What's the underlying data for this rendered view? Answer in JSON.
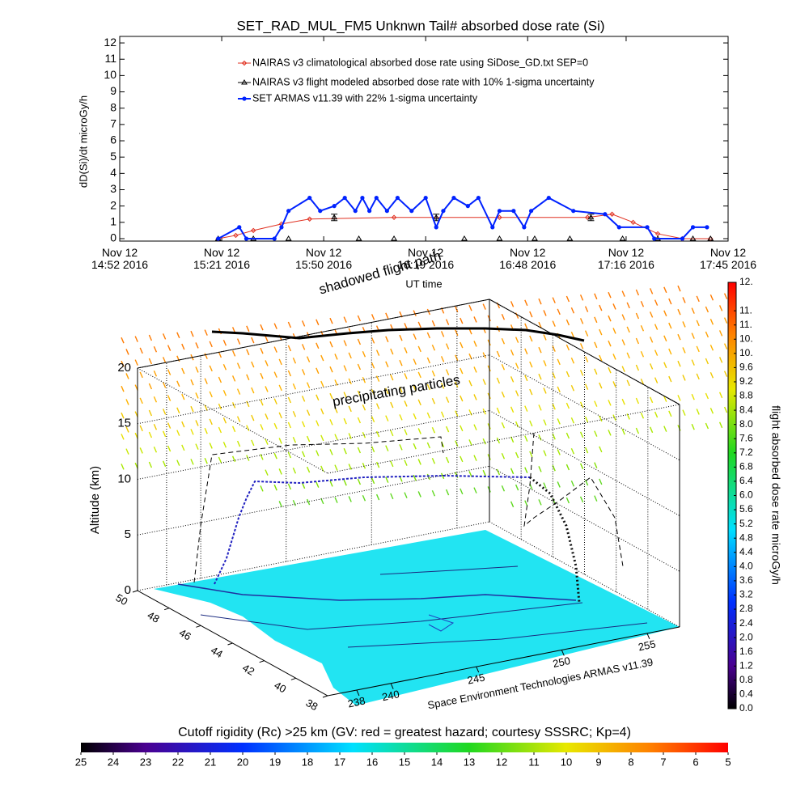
{
  "chart_data": [
    {
      "type": "line",
      "title": "SET_RAD_MUL_FM5 Unknwn Tail#  absorbed dose rate (Si)",
      "y_label": "dD(Si)/dt microGy/h",
      "x_label": "UT time",
      "xlim": [
        "2016-11-12T14:52",
        "2016-11-12T17:45"
      ],
      "xticks": [
        {
          "value": "2016-11-12T14:52",
          "label": "Nov 12\n14:52 2016"
        },
        {
          "value": "2016-11-12T15:21",
          "label": "Nov 12\n15:21 2016"
        },
        {
          "value": "2016-11-12T15:50",
          "label": "Nov 12\n15:50 2016"
        },
        {
          "value": "2016-11-12T16:19",
          "label": "Nov 12\n16:19 2016"
        },
        {
          "value": "2016-11-12T16:48",
          "label": "Nov 12\n16:48 2016"
        },
        {
          "value": "2016-11-12T17:16",
          "label": "Nov 12\n17:16 2016"
        },
        {
          "value": "2016-11-12T17:45",
          "label": "Nov 12\n17:45 2016"
        }
      ],
      "ylim": [
        -0.15,
        12.4
      ],
      "yticks": [
        0,
        1,
        2,
        3,
        4,
        5,
        6,
        7,
        8,
        9,
        10,
        11,
        12
      ],
      "series": [
        {
          "name": "NAIRAS v3 climatological absorbed dose rate using SiDose_GD.txt SEP=0",
          "color": "#e03020",
          "marker": "diamond",
          "line": true,
          "x": [
            "2016-11-12T15:20",
            "2016-11-12T15:25",
            "2016-11-12T15:30",
            "2016-11-12T15:38",
            "2016-11-12T15:46",
            "2016-11-12T16:10",
            "2016-11-12T16:40",
            "2016-11-12T17:05",
            "2016-11-12T17:12",
            "2016-11-12T17:18",
            "2016-11-12T17:25",
            "2016-11-12T17:32",
            "2016-11-12T17:40"
          ],
          "values": [
            0,
            0.2,
            0.5,
            0.9,
            1.2,
            1.3,
            1.3,
            1.3,
            1.5,
            1.0,
            0.3,
            0,
            0
          ]
        },
        {
          "name": "NAIRAS v3 flight modeled absorbed dose rate with 10% 1-sigma uncertainty",
          "color": "#000000",
          "marker": "triangle",
          "line": false,
          "x": [
            "2016-11-12T15:20",
            "2016-11-12T15:30",
            "2016-11-12T15:40",
            "2016-11-12T15:53",
            "2016-11-12T16:00",
            "2016-11-12T16:10",
            "2016-11-12T16:22",
            "2016-11-12T16:30",
            "2016-11-12T16:40",
            "2016-11-12T16:50",
            "2016-11-12T17:00",
            "2016-11-12T17:06",
            "2016-11-12T17:15",
            "2016-11-12T17:25",
            "2016-11-12T17:35",
            "2016-11-12T17:40"
          ],
          "values": [
            0,
            0,
            0,
            1.3,
            0,
            0,
            1.3,
            0,
            0,
            0,
            0,
            1.3,
            0,
            0,
            0,
            0
          ],
          "errors": [
            null,
            null,
            null,
            0.2,
            null,
            null,
            0.2,
            null,
            null,
            null,
            null,
            0.2,
            null,
            null,
            null,
            null
          ]
        },
        {
          "name": "SET ARMAS v11.39 with 22% 1-sigma uncertainty",
          "color": "#0022ff",
          "marker": "circle",
          "line": true,
          "x": [
            "2016-11-12T15:20",
            "2016-11-12T15:26",
            "2016-11-12T15:28",
            "2016-11-12T15:36",
            "2016-11-12T15:38",
            "2016-11-12T15:40",
            "2016-11-12T15:46",
            "2016-11-12T15:49",
            "2016-11-12T15:53",
            "2016-11-12T15:56",
            "2016-11-12T15:59",
            "2016-11-12T16:01",
            "2016-11-12T16:03",
            "2016-11-12T16:05",
            "2016-11-12T16:08",
            "2016-11-12T16:11",
            "2016-11-12T16:15",
            "2016-11-12T16:19",
            "2016-11-12T16:22",
            "2016-11-12T16:24",
            "2016-11-12T16:27",
            "2016-11-12T16:31",
            "2016-11-12T16:34",
            "2016-11-12T16:38",
            "2016-11-12T16:40",
            "2016-11-12T16:44",
            "2016-11-12T16:47",
            "2016-11-12T16:49",
            "2016-11-12T16:54",
            "2016-11-12T17:01",
            "2016-11-12T17:10",
            "2016-11-12T17:14",
            "2016-11-12T17:22",
            "2016-11-12T17:24",
            "2016-11-12T17:32",
            "2016-11-12T17:35",
            "2016-11-12T17:39"
          ],
          "values": [
            0,
            0.7,
            0,
            0,
            0.7,
            1.7,
            2.5,
            1.7,
            2.0,
            2.5,
            1.7,
            2.5,
            1.7,
            2.5,
            1.7,
            2.5,
            1.7,
            2.5,
            0.7,
            1.7,
            2.5,
            2.0,
            2.5,
            0.7,
            1.7,
            1.7,
            0.7,
            1.7,
            2.5,
            1.7,
            1.5,
            0.7,
            0.7,
            0,
            0,
            0.7,
            0.7
          ]
        }
      ]
    },
    {
      "type": "surface3d",
      "y_label": "Altitude (km)",
      "zlim": [
        0,
        20
      ],
      "zticks": [
        0,
        5,
        10,
        15,
        20
      ],
      "latlim": [
        38,
        50
      ],
      "latticks": [
        50,
        48,
        46,
        44,
        42,
        40,
        38
      ],
      "lonlim": [
        236.3,
        256.9
      ],
      "lonticks": [
        238,
        240,
        245,
        250,
        255
      ],
      "annotations": [
        "shadowed flight path",
        "precipitating particles",
        "Space Environment Technologies ARMAS v11.39"
      ]
    },
    {
      "type": "colorbar",
      "orientation": "vertical",
      "label": "flight absorbed dose rate microGy/h",
      "lim": [
        0,
        12
      ],
      "ticks": [
        {
          "value": 0,
          "label": "0.0"
        },
        0.4,
        0.8,
        1.2,
        1.6,
        {
          "value": 2,
          "label": "2.0"
        },
        2.4,
        2.8,
        3.2,
        3.6,
        {
          "value": 4,
          "label": "4.0"
        },
        4.4,
        4.8,
        5.2,
        5.6,
        {
          "value": 6,
          "label": "6.0"
        },
        6.4,
        6.8,
        7.2,
        7.6,
        {
          "value": 8,
          "label": "8.0"
        },
        8.4,
        8.8,
        9.2,
        9.6,
        {
          "value": 10,
          "label": "10."
        },
        {
          "value": 10.4,
          "label": "10."
        },
        {
          "value": 10.8,
          "label": "11."
        },
        {
          "value": 11.2,
          "label": "11."
        },
        {
          "value": 12,
          "label": "12."
        }
      ]
    },
    {
      "type": "colorbar",
      "orientation": "horizontal",
      "label": "Cutoff rigidity (Rc) >25 km (GV: red = greatest hazard; courtesy SSSRC; Kp=4)",
      "lim": [
        25,
        5
      ],
      "ticks": [
        25,
        24,
        23,
        22,
        21,
        20,
        19,
        18,
        17,
        16,
        15,
        14,
        13,
        12,
        11,
        10,
        9,
        8,
        7,
        6,
        5
      ]
    }
  ]
}
